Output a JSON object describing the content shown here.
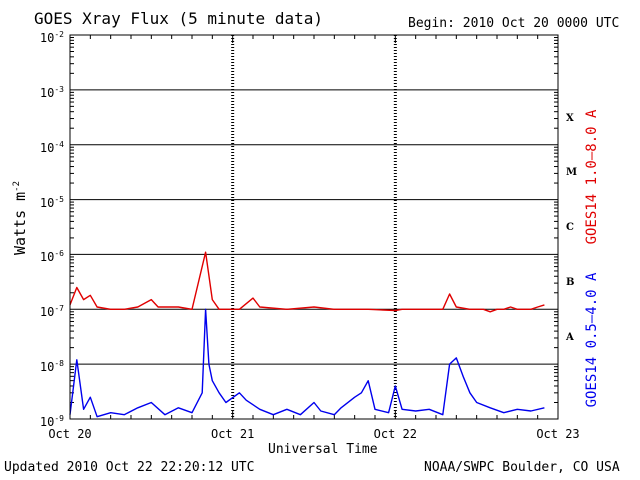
{
  "chart_data": {
    "type": "line",
    "title": "GOES Xray Flux (5 minute data)",
    "begin": "Begin:  2010 Oct 20 0000 UTC",
    "xlabel": "Universal Time",
    "ylabel_base": "Watts m",
    "ylabel_exp": "-2",
    "y_scale": "log",
    "ylim": [
      1e-09,
      0.01
    ],
    "y_ticks": [
      {
        "value": 0.01,
        "base": "10",
        "exp": "-2"
      },
      {
        "value": 0.001,
        "base": "10",
        "exp": "-3"
      },
      {
        "value": 0.0001,
        "base": "10",
        "exp": "-4"
      },
      {
        "value": 1e-05,
        "base": "10",
        "exp": "-5"
      },
      {
        "value": 1e-06,
        "base": "10",
        "exp": "-6"
      },
      {
        "value": 1e-07,
        "base": "10",
        "exp": "-7"
      },
      {
        "value": 1e-08,
        "base": "10",
        "exp": "-8"
      },
      {
        "value": 1e-09,
        "base": "10",
        "exp": "-9"
      }
    ],
    "x_days": [
      "Oct 20",
      "Oct 21",
      "Oct 22",
      "Oct 23"
    ],
    "flare_classes": [
      {
        "label": "X",
        "value": 0.0003
      },
      {
        "label": "M",
        "value": 3e-05
      },
      {
        "label": "C",
        "value": 3e-06
      },
      {
        "label": "B",
        "value": 3e-07
      },
      {
        "label": "A",
        "value": 3e-08
      }
    ],
    "grid": true,
    "series": [
      {
        "name": "GOES14 1.0–8.0 A",
        "color": "#e00000",
        "points": [
          [
            "2010-10-20 00:00",
            1.2e-07
          ],
          [
            "2010-10-20 01:00",
            2.5e-07
          ],
          [
            "2010-10-20 02:00",
            1.5e-07
          ],
          [
            "2010-10-20 03:00",
            1.8e-07
          ],
          [
            "2010-10-20 04:00",
            1.1e-07
          ],
          [
            "2010-10-20 06:00",
            1e-07
          ],
          [
            "2010-10-20 08:00",
            1e-07
          ],
          [
            "2010-10-20 10:00",
            1.1e-07
          ],
          [
            "2010-10-20 12:00",
            1.5e-07
          ],
          [
            "2010-10-20 13:00",
            1.1e-07
          ],
          [
            "2010-10-20 16:00",
            1.1e-07
          ],
          [
            "2010-10-20 18:00",
            1e-07
          ],
          [
            "2010-10-20 20:00",
            1.1e-06
          ],
          [
            "2010-10-20 21:00",
            1.5e-07
          ],
          [
            "2010-10-20 22:00",
            1e-07
          ],
          [
            "2010-10-21 01:00",
            1e-07
          ],
          [
            "2010-10-21 03:00",
            1.6e-07
          ],
          [
            "2010-10-21 04:00",
            1.1e-07
          ],
          [
            "2010-10-21 08:00",
            1e-07
          ],
          [
            "2010-10-21 12:00",
            1.1e-07
          ],
          [
            "2010-10-21 15:00",
            1e-07
          ],
          [
            "2010-10-21 18:00",
            1e-07
          ],
          [
            "2010-10-21 20:00",
            1e-07
          ],
          [
            "2010-10-22 00:00",
            9.5e-08
          ],
          [
            "2010-10-22 01:00",
            1e-07
          ],
          [
            "2010-10-22 03:00",
            1e-07
          ],
          [
            "2010-10-22 05:00",
            1e-07
          ],
          [
            "2010-10-22 07:00",
            1e-07
          ],
          [
            "2010-10-22 08:00",
            1.9e-07
          ],
          [
            "2010-10-22 09:00",
            1.1e-07
          ],
          [
            "2010-10-22 11:00",
            1e-07
          ],
          [
            "2010-10-22 13:00",
            1e-07
          ],
          [
            "2010-10-22 14:00",
            9e-08
          ],
          [
            "2010-10-22 15:00",
            1e-07
          ],
          [
            "2010-10-22 16:00",
            1e-07
          ],
          [
            "2010-10-22 17:00",
            1.1e-07
          ],
          [
            "2010-10-22 18:00",
            1e-07
          ],
          [
            "2010-10-22 19:00",
            1e-07
          ],
          [
            "2010-10-22 20:00",
            1e-07
          ],
          [
            "2010-10-22 21:00",
            1.1e-07
          ],
          [
            "2010-10-22 22:00",
            1.2e-07
          ]
        ]
      },
      {
        "name": "GOES14 0.5–4.0 A",
        "color": "#0000ee",
        "points": [
          [
            "2010-10-20 00:00",
            1.2e-09
          ],
          [
            "2010-10-20 01:00",
            1.2e-08
          ],
          [
            "2010-10-20 02:00",
            1.5e-09
          ],
          [
            "2010-10-20 03:00",
            2.5e-09
          ],
          [
            "2010-10-20 04:00",
            1.1e-09
          ],
          [
            "2010-10-20 06:00",
            1.3e-09
          ],
          [
            "2010-10-20 08:00",
            1.2e-09
          ],
          [
            "2010-10-20 10:00",
            1.6e-09
          ],
          [
            "2010-10-20 12:00",
            2e-09
          ],
          [
            "2010-10-20 14:00",
            1.2e-09
          ],
          [
            "2010-10-20 16:00",
            1.6e-09
          ],
          [
            "2010-10-20 18:00",
            1.3e-09
          ],
          [
            "2010-10-20 19:30",
            3e-09
          ],
          [
            "2010-10-20 20:00",
            1e-07
          ],
          [
            "2010-10-20 20:30",
            1e-08
          ],
          [
            "2010-10-20 21:00",
            5e-09
          ],
          [
            "2010-10-20 22:00",
            3e-09
          ],
          [
            "2010-10-20 23:00",
            2e-09
          ],
          [
            "2010-10-21 01:00",
            3e-09
          ],
          [
            "2010-10-21 02:00",
            2.2e-09
          ],
          [
            "2010-10-21 04:00",
            1.5e-09
          ],
          [
            "2010-10-21 06:00",
            1.2e-09
          ],
          [
            "2010-10-21 08:00",
            1.5e-09
          ],
          [
            "2010-10-21 10:00",
            1.2e-09
          ],
          [
            "2010-10-21 12:00",
            2e-09
          ],
          [
            "2010-10-21 13:00",
            1.4e-09
          ],
          [
            "2010-10-21 15:00",
            1.2e-09
          ],
          [
            "2010-10-21 16:00",
            1.6e-09
          ],
          [
            "2010-10-21 18:00",
            2.5e-09
          ],
          [
            "2010-10-21 19:00",
            3e-09
          ],
          [
            "2010-10-21 20:00",
            5e-09
          ],
          [
            "2010-10-21 21:00",
            1.5e-09
          ],
          [
            "2010-10-21 23:00",
            1.3e-09
          ],
          [
            "2010-10-22 00:00",
            4e-09
          ],
          [
            "2010-10-22 01:00",
            1.5e-09
          ],
          [
            "2010-10-22 03:00",
            1.4e-09
          ],
          [
            "2010-10-22 05:00",
            1.5e-09
          ],
          [
            "2010-10-22 07:00",
            1.2e-09
          ],
          [
            "2010-10-22 08:00",
            1e-08
          ],
          [
            "2010-10-22 09:00",
            1.3e-08
          ],
          [
            "2010-10-22 10:00",
            6e-09
          ],
          [
            "2010-10-22 11:00",
            3e-09
          ],
          [
            "2010-10-22 12:00",
            2e-09
          ],
          [
            "2010-10-22 14:00",
            1.6e-09
          ],
          [
            "2010-10-22 16:00",
            1.3e-09
          ],
          [
            "2010-10-22 18:00",
            1.5e-09
          ],
          [
            "2010-10-22 20:00",
            1.4e-09
          ],
          [
            "2010-10-22 22:00",
            1.6e-09
          ]
        ]
      }
    ]
  },
  "footer": {
    "updated": "Updated 2010 Oct 22 22:20:12 UTC",
    "credit": "NOAA/SWPC Boulder, CO USA"
  }
}
